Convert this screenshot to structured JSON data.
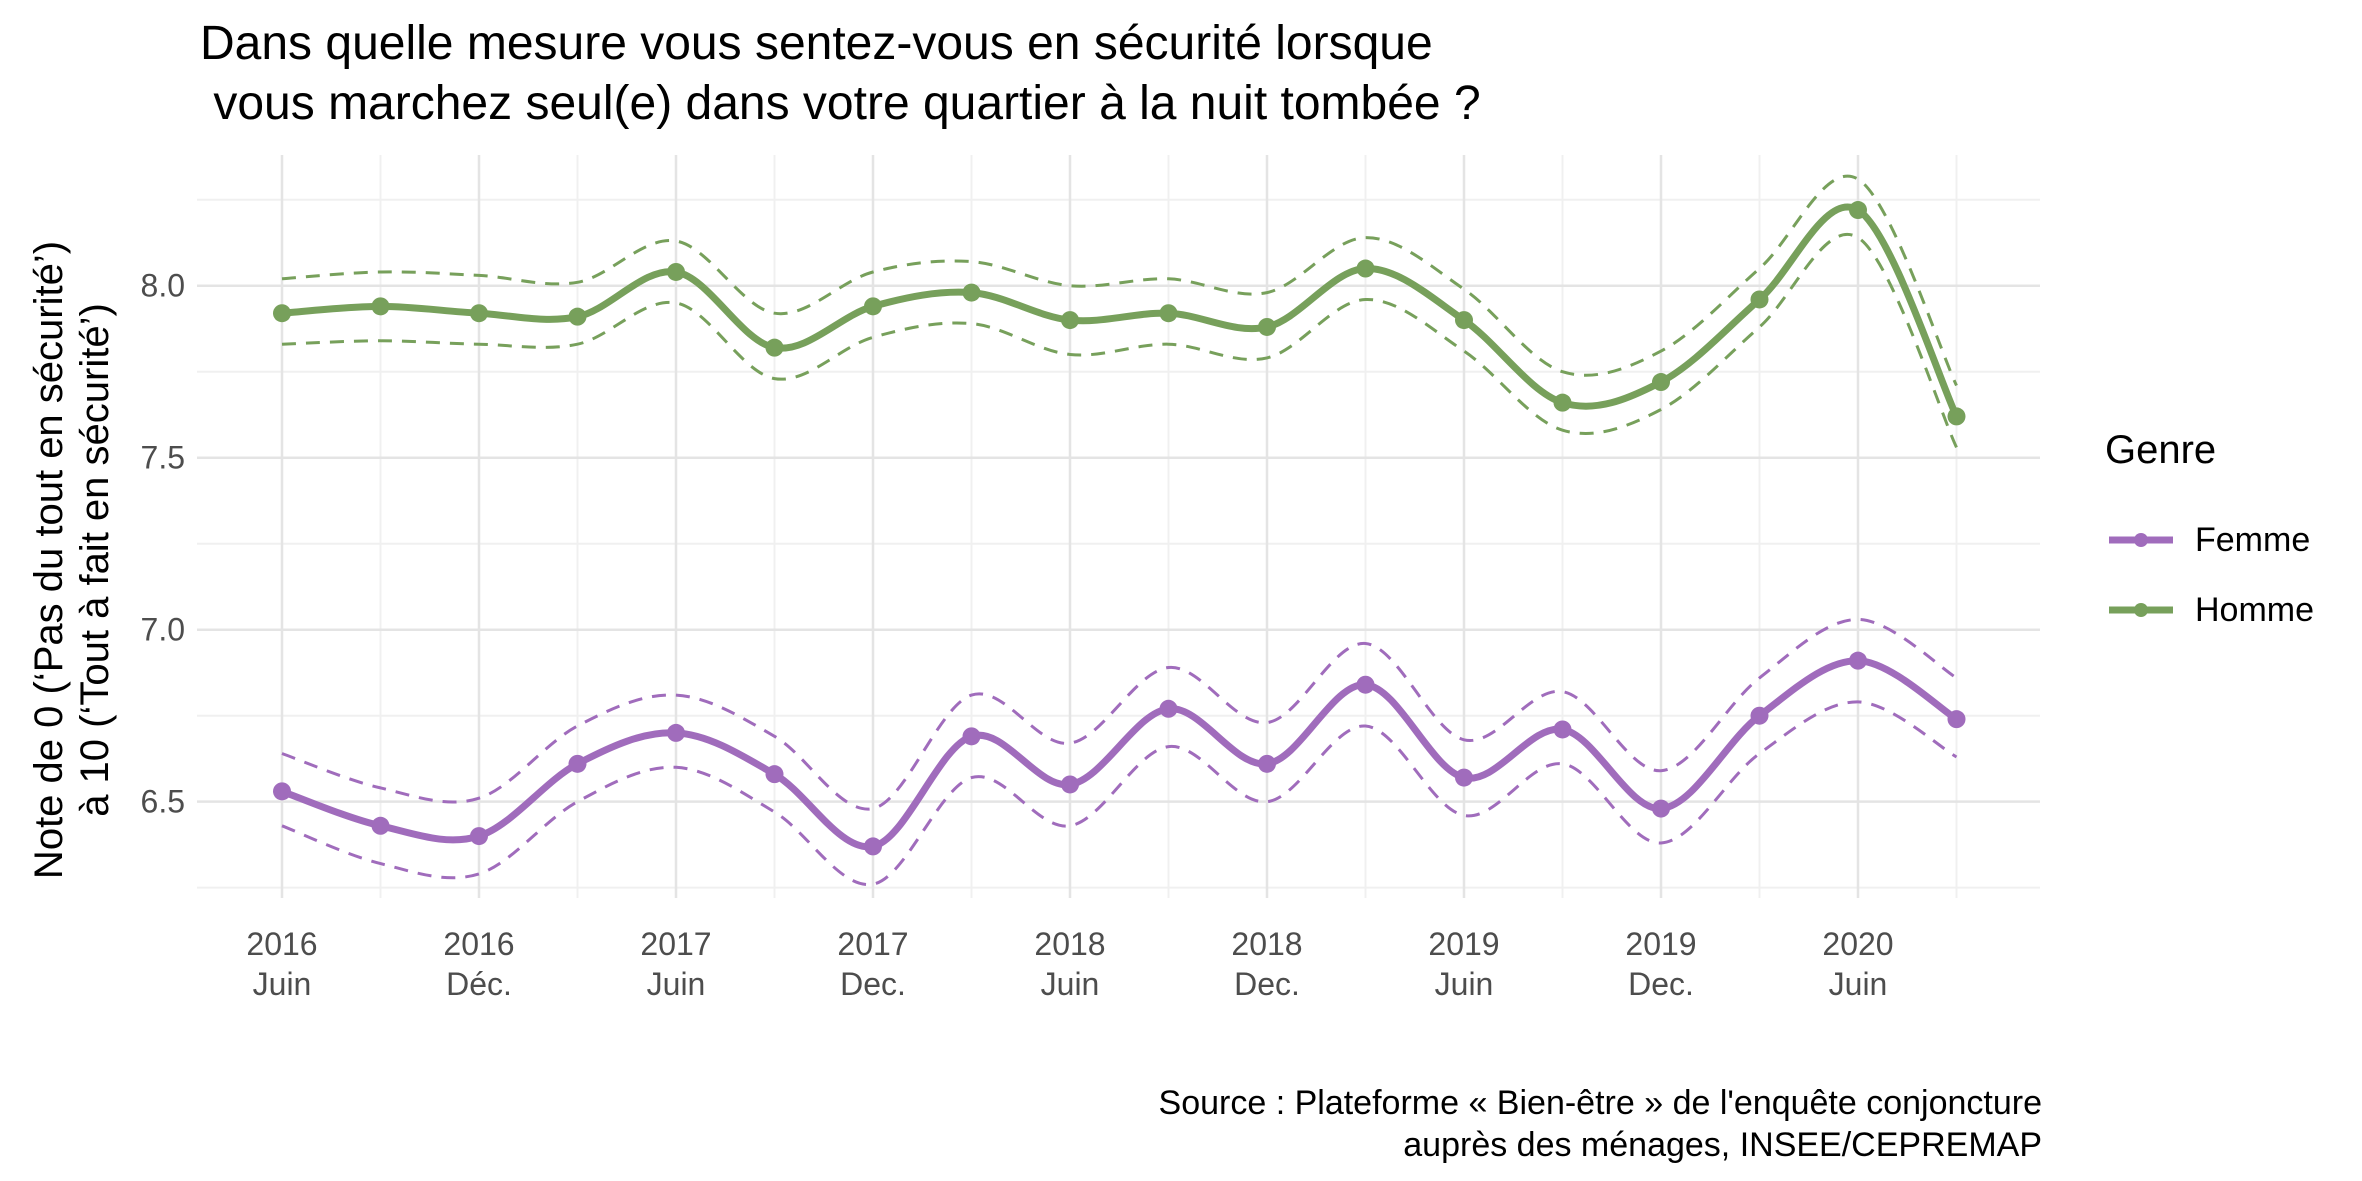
{
  "chart_data": {
    "type": "line",
    "title": "Dans quelle mesure vous sentez-vous en sécurité lorsque\n vous marchez seul(e) dans votre quartier à la nuit tombée ?",
    "ylabel": "Note de 0 (‘Pas du tout en sécurité’)\nà 10 (‘Tout à fait en sécurité’)",
    "xlabel": "",
    "source": "Source : Plateforme « Bien-être » de l'enquête conjoncture\nauprès des ménages, INSEE/CEPREMAP",
    "legend_title": "Genre",
    "legend_position": "right",
    "grid": true,
    "ylim": [
      6.22,
      8.38
    ],
    "y_ticks": [
      6.5,
      7.0,
      7.5,
      8.0
    ],
    "y_tick_labels": [
      "6.5",
      "7.0",
      "7.5",
      "8.0"
    ],
    "x": [
      0,
      1,
      2,
      3,
      4,
      5,
      6,
      7,
      8,
      9,
      10,
      11,
      12,
      13,
      14,
      15,
      16,
      17
    ],
    "x_ticks": [
      0,
      2,
      4,
      6,
      8,
      10,
      12,
      14,
      16
    ],
    "x_tick_labels": [
      [
        "2016",
        "Juin"
      ],
      [
        "2016",
        "Déc."
      ],
      [
        "2017",
        "Juin"
      ],
      [
        "2017",
        "Dec."
      ],
      [
        "2018",
        "Juin"
      ],
      [
        "2018",
        "Dec."
      ],
      [
        "2019",
        "Juin"
      ],
      [
        "2019",
        "Dec."
      ],
      [
        "2020",
        "Juin"
      ]
    ],
    "series": [
      {
        "name": "Femme",
        "color": "#a06cbc",
        "values": [
          6.53,
          6.43,
          6.4,
          6.61,
          6.7,
          6.58,
          6.37,
          6.69,
          6.55,
          6.77,
          6.61,
          6.84,
          6.57,
          6.71,
          6.48,
          6.75,
          6.91,
          6.74
        ],
        "lower": [
          6.43,
          6.32,
          6.29,
          6.5,
          6.6,
          6.47,
          6.26,
          6.57,
          6.43,
          6.66,
          6.5,
          6.72,
          6.46,
          6.61,
          6.38,
          6.64,
          6.79,
          6.63
        ],
        "upper": [
          6.64,
          6.54,
          6.51,
          6.72,
          6.81,
          6.69,
          6.48,
          6.81,
          6.67,
          6.89,
          6.73,
          6.96,
          6.68,
          6.82,
          6.59,
          6.86,
          7.03,
          6.86
        ]
      },
      {
        "name": "Homme",
        "color": "#77a05b",
        "values": [
          7.92,
          7.94,
          7.92,
          7.91,
          8.04,
          7.82,
          7.94,
          7.98,
          7.9,
          7.92,
          7.88,
          8.05,
          7.9,
          7.66,
          7.72,
          7.96,
          8.22,
          7.62
        ],
        "lower": [
          7.83,
          7.84,
          7.83,
          7.83,
          7.95,
          7.73,
          7.85,
          7.89,
          7.8,
          7.83,
          7.79,
          7.96,
          7.81,
          7.58,
          7.64,
          7.88,
          8.14,
          7.53
        ],
        "upper": [
          8.02,
          8.04,
          8.03,
          8.01,
          8.13,
          7.92,
          8.04,
          8.07,
          8.0,
          8.02,
          7.98,
          8.14,
          7.99,
          7.75,
          7.81,
          8.05,
          8.31,
          7.71
        ]
      }
    ]
  }
}
